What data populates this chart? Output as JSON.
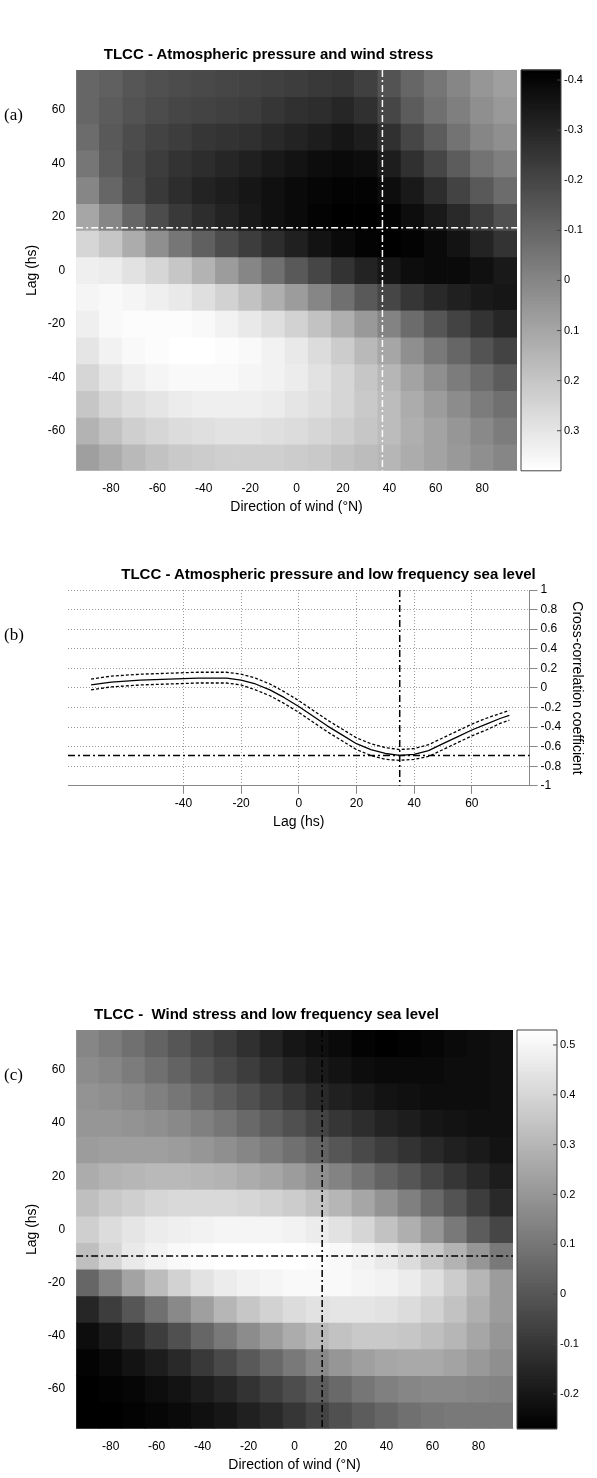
{
  "chart_data": [
    {
      "type": "heatmap",
      "title": "TLCC - Atmospheric pressure and wind stress",
      "xlabel": "Direction of wind (°N)",
      "ylabel": "Lag (hs)",
      "annotations": [
        "(a)"
      ],
      "categories": [
        null,
        "-80",
        null,
        "-60",
        null,
        "-40",
        null,
        "-20",
        null,
        "0",
        null,
        "20",
        null,
        "40",
        null,
        "60",
        null,
        "80",
        null
      ],
      "y_categories": [
        null,
        "60",
        null,
        "40",
        null,
        "20",
        null,
        "0",
        null,
        "-20",
        null,
        "-40",
        null,
        "-60",
        null
      ],
      "clim": [
        0.38,
        -0.42
      ],
      "cticks": [
        -0.4,
        -0.3,
        -0.2,
        -0.1,
        0,
        0.1,
        0.2,
        0.3
      ],
      "cells": [
        [
          -0.1,
          -0.12,
          -0.15,
          -0.17,
          -0.18,
          -0.19,
          -0.2,
          -0.21,
          -0.22,
          -0.23,
          -0.24,
          -0.25,
          -0.22,
          -0.16,
          -0.1,
          -0.05,
          0.0,
          0.05,
          0.08
        ],
        [
          -0.1,
          -0.13,
          -0.16,
          -0.18,
          -0.2,
          -0.21,
          -0.22,
          -0.23,
          -0.25,
          -0.27,
          -0.28,
          -0.3,
          -0.27,
          -0.2,
          -0.13,
          -0.07,
          -0.02,
          0.03,
          0.06
        ],
        [
          -0.08,
          -0.14,
          -0.18,
          -0.21,
          -0.23,
          -0.25,
          -0.26,
          -0.27,
          -0.29,
          -0.31,
          -0.33,
          -0.35,
          -0.33,
          -0.27,
          -0.2,
          -0.13,
          -0.06,
          0.0,
          0.03
        ],
        [
          -0.05,
          -0.13,
          -0.19,
          -0.23,
          -0.26,
          -0.28,
          -0.3,
          -0.32,
          -0.34,
          -0.36,
          -0.38,
          -0.39,
          -0.38,
          -0.33,
          -0.27,
          -0.2,
          -0.13,
          -0.06,
          -0.02
        ],
        [
          0.0,
          -0.1,
          -0.18,
          -0.24,
          -0.28,
          -0.31,
          -0.33,
          -0.35,
          -0.37,
          -0.39,
          -0.4,
          -0.41,
          -0.41,
          -0.38,
          -0.34,
          -0.28,
          -0.21,
          -0.14,
          -0.08
        ],
        [
          0.1,
          0.0,
          -0.1,
          -0.18,
          -0.24,
          -0.28,
          -0.31,
          -0.34,
          -0.37,
          -0.39,
          -0.41,
          -0.42,
          -0.42,
          -0.41,
          -0.38,
          -0.34,
          -0.29,
          -0.23,
          -0.17
        ],
        [
          0.25,
          0.2,
          0.12,
          0.03,
          -0.05,
          -0.12,
          -0.18,
          -0.23,
          -0.28,
          -0.32,
          -0.36,
          -0.39,
          -0.41,
          -0.42,
          -0.41,
          -0.39,
          -0.36,
          -0.31,
          -0.26
        ],
        [
          0.33,
          0.32,
          0.29,
          0.25,
          0.2,
          0.14,
          0.07,
          0.0,
          -0.07,
          -0.14,
          -0.2,
          -0.26,
          -0.31,
          -0.35,
          -0.38,
          -0.39,
          -0.39,
          -0.37,
          -0.34
        ],
        [
          0.35,
          0.36,
          0.35,
          0.33,
          0.31,
          0.28,
          0.24,
          0.19,
          0.13,
          0.07,
          0.0,
          -0.07,
          -0.14,
          -0.2,
          -0.25,
          -0.29,
          -0.32,
          -0.34,
          -0.35
        ],
        [
          0.33,
          0.36,
          0.37,
          0.37,
          0.37,
          0.36,
          0.34,
          0.31,
          0.28,
          0.24,
          0.19,
          0.13,
          0.06,
          -0.01,
          -0.08,
          -0.15,
          -0.21,
          -0.26,
          -0.3
        ],
        [
          0.3,
          0.34,
          0.36,
          0.37,
          0.38,
          0.38,
          0.37,
          0.36,
          0.34,
          0.31,
          0.27,
          0.22,
          0.16,
          0.1,
          0.03,
          -0.04,
          -0.1,
          -0.16,
          -0.21
        ],
        [
          0.25,
          0.3,
          0.33,
          0.35,
          0.36,
          0.36,
          0.36,
          0.35,
          0.34,
          0.32,
          0.29,
          0.25,
          0.2,
          0.15,
          0.09,
          0.03,
          -0.03,
          -0.08,
          -0.13
        ],
        [
          0.2,
          0.25,
          0.28,
          0.3,
          0.32,
          0.33,
          0.33,
          0.33,
          0.32,
          0.3,
          0.28,
          0.25,
          0.21,
          0.17,
          0.12,
          0.07,
          0.02,
          -0.03,
          -0.07
        ],
        [
          0.14,
          0.19,
          0.23,
          0.25,
          0.27,
          0.28,
          0.29,
          0.29,
          0.28,
          0.27,
          0.25,
          0.23,
          0.2,
          0.17,
          0.13,
          0.09,
          0.05,
          0.01,
          -0.03
        ],
        [
          0.08,
          0.12,
          0.16,
          0.19,
          0.21,
          0.22,
          0.23,
          0.23,
          0.23,
          0.22,
          0.21,
          0.19,
          0.17,
          0.15,
          0.12,
          0.09,
          0.06,
          0.03,
          0.0
        ]
      ]
    },
    {
      "type": "line",
      "title": "TLCC - Atmospheric pressure and low frequency sea level",
      "xlabel": "Lag (hs)",
      "ylabel": "Cross-correlation coefficient",
      "annotations": [
        "(b)"
      ],
      "x": [
        -72,
        -65,
        -55,
        -45,
        -35,
        -25,
        -20,
        -15,
        -10,
        -5,
        0,
        5,
        10,
        15,
        20,
        25,
        30,
        35,
        40,
        45,
        50,
        55,
        60,
        65,
        70,
        73
      ],
      "xlim": [
        -80,
        80
      ],
      "xticks": [
        -40,
        -20,
        0,
        20,
        40,
        60
      ],
      "ylim": [
        -1,
        1
      ],
      "yticks": [
        -1,
        -0.8,
        -0.6,
        -0.4,
        -0.2,
        0,
        0.2,
        0.4,
        0.6,
        0.8,
        1
      ],
      "grid": true,
      "ref_lines": [
        {
          "axis": "x",
          "value": 35,
          "color": "#000000",
          "line_style": "dashed"
        },
        {
          "axis": "y",
          "value": -0.69,
          "color": "#000000",
          "line_style": "dashed"
        }
      ],
      "series": [
        {
          "color": "#000000",
          "line_style": "solid",
          "values": [
            0.03,
            0.06,
            0.08,
            0.09,
            0.1,
            0.1,
            0.08,
            0.04,
            -0.02,
            -0.1,
            -0.19,
            -0.29,
            -0.39,
            -0.48,
            -0.57,
            -0.63,
            -0.67,
            -0.69,
            -0.68,
            -0.64,
            -0.57,
            -0.5,
            -0.43,
            -0.37,
            -0.31,
            -0.28
          ]
        },
        {
          "color": "#000000",
          "line_style": "dashed",
          "values": [
            0.09,
            0.12,
            0.14,
            0.15,
            0.16,
            0.16,
            0.14,
            0.1,
            0.04,
            -0.04,
            -0.13,
            -0.23,
            -0.33,
            -0.42,
            -0.51,
            -0.57,
            -0.61,
            -0.63,
            -0.62,
            -0.58,
            -0.51,
            -0.44,
            -0.37,
            -0.31,
            -0.26,
            -0.23
          ]
        },
        {
          "color": "#000000",
          "line_style": "dashed",
          "values": [
            -0.02,
            0.01,
            0.03,
            0.04,
            0.05,
            0.05,
            0.03,
            -0.02,
            -0.08,
            -0.16,
            -0.25,
            -0.35,
            -0.45,
            -0.54,
            -0.63,
            -0.69,
            -0.73,
            -0.74,
            -0.73,
            -0.7,
            -0.63,
            -0.56,
            -0.49,
            -0.43,
            -0.36,
            -0.33
          ]
        }
      ]
    },
    {
      "type": "heatmap",
      "title": "TLCC -  Wind stress and low frequency sea level",
      "xlabel": "Direction of wind (°N)",
      "ylabel": "Lag (hs)",
      "annotations": [
        "(c)"
      ],
      "categories": [
        null,
        "-80",
        null,
        "-60",
        null,
        "-40",
        null,
        "-20",
        null,
        "0",
        null,
        "20",
        null,
        "40",
        null,
        "60",
        null,
        "80",
        null
      ],
      "y_categories": [
        null,
        "60",
        null,
        "40",
        null,
        "20",
        null,
        "0",
        null,
        "-20",
        null,
        "-40",
        null,
        "-60",
        null
      ],
      "clim": [
        -0.27,
        0.53
      ],
      "cticks": [
        -0.2,
        -0.1,
        0,
        0.1,
        0.2,
        0.3,
        0.4,
        0.5
      ],
      "cells": [
        [
          0.15,
          0.12,
          0.08,
          0.04,
          0.0,
          -0.04,
          -0.08,
          -0.12,
          -0.16,
          -0.2,
          -0.22,
          -0.24,
          -0.26,
          -0.27,
          -0.26,
          -0.25,
          -0.24,
          -0.23,
          -0.22
        ],
        [
          0.17,
          0.15,
          0.12,
          0.08,
          0.04,
          0.0,
          -0.04,
          -0.08,
          -0.12,
          -0.16,
          -0.19,
          -0.21,
          -0.23,
          -0.24,
          -0.24,
          -0.24,
          -0.23,
          -0.23,
          -0.22
        ],
        [
          0.19,
          0.18,
          0.16,
          0.13,
          0.1,
          0.06,
          0.02,
          -0.02,
          -0.06,
          -0.1,
          -0.14,
          -0.17,
          -0.19,
          -0.21,
          -0.22,
          -0.23,
          -0.23,
          -0.23,
          -0.22
        ],
        [
          0.2,
          0.2,
          0.19,
          0.18,
          0.16,
          0.13,
          0.1,
          0.06,
          0.02,
          -0.02,
          -0.06,
          -0.1,
          -0.13,
          -0.16,
          -0.18,
          -0.2,
          -0.21,
          -0.22,
          -0.22
        ],
        [
          0.22,
          0.23,
          0.23,
          0.23,
          0.22,
          0.2,
          0.18,
          0.15,
          0.12,
          0.08,
          0.04,
          0.0,
          -0.04,
          -0.08,
          -0.11,
          -0.14,
          -0.17,
          -0.19,
          -0.21
        ],
        [
          0.27,
          0.29,
          0.3,
          0.31,
          0.31,
          0.3,
          0.29,
          0.27,
          0.25,
          0.22,
          0.18,
          0.14,
          0.09,
          0.04,
          0.0,
          -0.05,
          -0.1,
          -0.14,
          -0.18
        ],
        [
          0.33,
          0.36,
          0.38,
          0.4,
          0.41,
          0.41,
          0.41,
          0.4,
          0.39,
          0.37,
          0.34,
          0.3,
          0.25,
          0.19,
          0.13,
          0.06,
          -0.01,
          -0.08,
          -0.14
        ],
        [
          0.38,
          0.42,
          0.45,
          0.47,
          0.48,
          0.49,
          0.5,
          0.5,
          0.5,
          0.49,
          0.47,
          0.44,
          0.4,
          0.34,
          0.28,
          0.2,
          0.11,
          0.02,
          -0.05
        ],
        [
          0.33,
          0.4,
          0.46,
          0.49,
          0.51,
          0.52,
          0.53,
          0.53,
          0.53,
          0.53,
          0.52,
          0.51,
          0.49,
          0.46,
          0.42,
          0.36,
          0.29,
          0.2,
          0.11
        ],
        [
          0.05,
          0.14,
          0.24,
          0.32,
          0.39,
          0.44,
          0.47,
          0.49,
          0.5,
          0.51,
          0.51,
          0.51,
          0.5,
          0.49,
          0.47,
          0.43,
          0.37,
          0.3,
          0.22
        ],
        [
          -0.15,
          -0.08,
          0.0,
          0.08,
          0.16,
          0.23,
          0.3,
          0.35,
          0.39,
          0.42,
          0.44,
          0.45,
          0.45,
          0.44,
          0.42,
          0.39,
          0.34,
          0.28,
          0.22
        ],
        [
          -0.23,
          -0.19,
          -0.14,
          -0.08,
          -0.02,
          0.05,
          0.11,
          0.17,
          0.22,
          0.27,
          0.31,
          0.34,
          0.36,
          0.36,
          0.35,
          0.33,
          0.3,
          0.25,
          0.2
        ],
        [
          -0.26,
          -0.24,
          -0.21,
          -0.18,
          -0.14,
          -0.09,
          -0.04,
          0.01,
          0.06,
          0.11,
          0.16,
          0.2,
          0.23,
          0.25,
          0.26,
          0.26,
          0.24,
          0.21,
          0.18
        ],
        [
          -0.27,
          -0.26,
          -0.25,
          -0.23,
          -0.21,
          -0.18,
          -0.15,
          -0.11,
          -0.07,
          -0.03,
          0.02,
          0.06,
          0.1,
          0.13,
          0.15,
          0.16,
          0.16,
          0.15,
          0.14
        ],
        [
          -0.27,
          -0.27,
          -0.26,
          -0.25,
          -0.24,
          -0.22,
          -0.2,
          -0.17,
          -0.14,
          -0.1,
          -0.06,
          -0.02,
          0.02,
          0.05,
          0.08,
          0.1,
          0.11,
          0.11,
          0.11
        ]
      ]
    }
  ]
}
